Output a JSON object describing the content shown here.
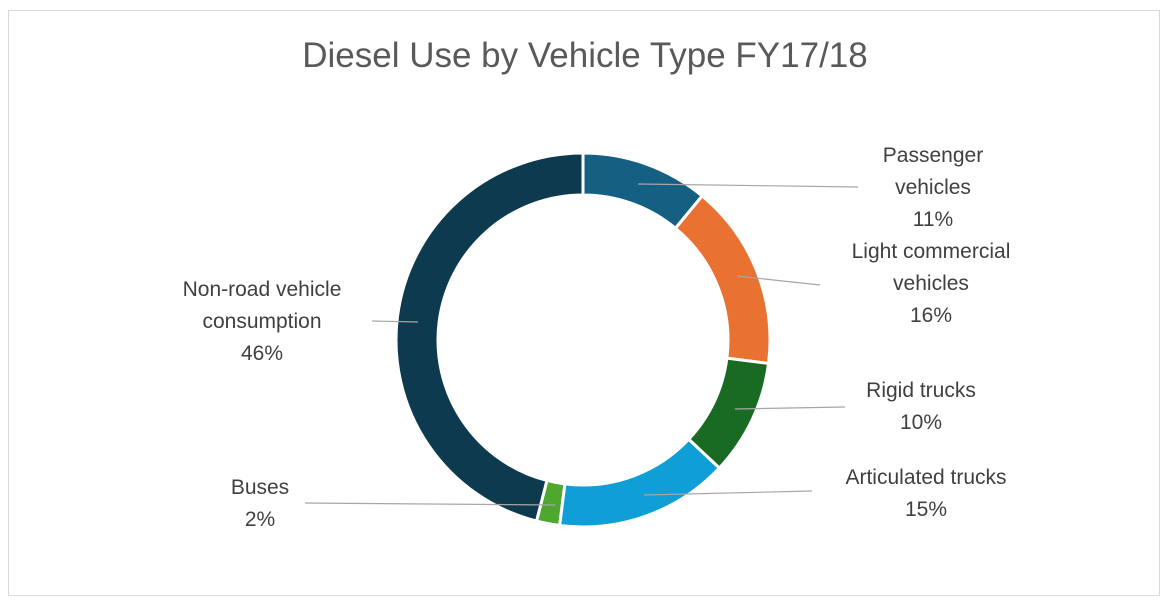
{
  "chart_data": {
    "type": "pie",
    "variant": "donut",
    "title": "Diesel Use by Vehicle Type FY17/18",
    "categories": [
      "Passenger vehicles",
      "Light commercial vehicles",
      "Rigid trucks",
      "Articulated trucks",
      "Buses",
      "Non-road vehicle consumption"
    ],
    "label_lines": [
      [
        "Passenger",
        "vehicles"
      ],
      [
        "Light commercial",
        "vehicles"
      ],
      [
        "Rigid trucks"
      ],
      [
        "Articulated trucks"
      ],
      [
        "Buses"
      ],
      [
        "Non-road vehicle",
        "consumption"
      ]
    ],
    "values": [
      11,
      16,
      10,
      15,
      2,
      46
    ],
    "value_labels": [
      "11%",
      "16%",
      "10%",
      "15%",
      "2%",
      "46%"
    ],
    "colors": [
      "#156082",
      "#E97132",
      "#196B24",
      "#0F9ED5",
      "#4EA72E",
      "#0E3A4F"
    ],
    "legend": "none"
  }
}
